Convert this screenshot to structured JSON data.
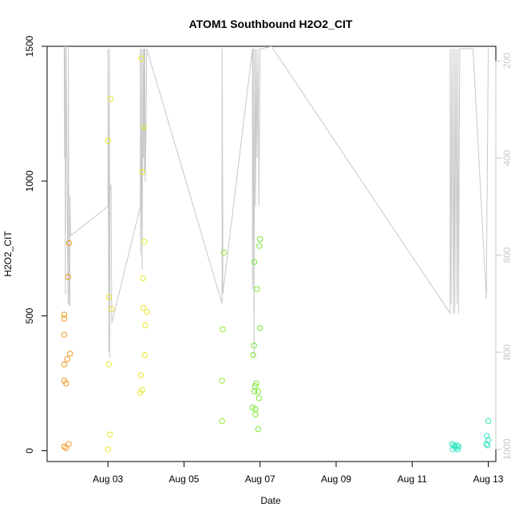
{
  "chart_data": {
    "type": "scatter",
    "title": "ATOM1 Southbound H2O2_CIT",
    "xlabel": "Date",
    "ylabel": "H2O2_CIT",
    "x_unit": "days in August",
    "xlim": [
      1.4,
      13.2
    ],
    "ylim": [
      -40,
      1500
    ],
    "x_ticks": [
      {
        "value": 3,
        "label": "Aug 03"
      },
      {
        "value": 5,
        "label": "Aug 05"
      },
      {
        "value": 7,
        "label": "Aug 07"
      },
      {
        "value": 9,
        "label": "Aug 09"
      },
      {
        "value": 11,
        "label": "Aug 11"
      },
      {
        "value": 13,
        "label": "Aug 13"
      }
    ],
    "y_ticks": [
      {
        "value": 0,
        "label": "0"
      },
      {
        "value": 500,
        "label": "500"
      },
      {
        "value": 1000,
        "label": "1000"
      },
      {
        "value": 1500,
        "label": "1500"
      }
    ],
    "right_axis": {
      "reversed": true,
      "ylim": [
        1025,
        170
      ],
      "color": "#c8c8c8",
      "ticks": [
        {
          "value": 200,
          "label": "200"
        },
        {
          "value": 400,
          "label": "400"
        },
        {
          "value": 600,
          "label": "600"
        },
        {
          "value": 800,
          "label": "800"
        },
        {
          "value": 1000,
          "label": "1000"
        }
      ]
    },
    "track": {
      "color": "#c8c8c8",
      "comment_free": true,
      "x": [
        1.85,
        1.86,
        1.87,
        1.88,
        1.9,
        1.95,
        1.96,
        1.97,
        1.98,
        2.0,
        2.0,
        2.02,
        3.0,
        3.0,
        3.02,
        3.04,
        3.05,
        3.05,
        3.08,
        3.1,
        3.85,
        3.85,
        3.86,
        3.88,
        3.88,
        3.9,
        3.92,
        3.93,
        3.95,
        3.96,
        3.97,
        3.98,
        4.0,
        4.02,
        6.0,
        6.0,
        6.02,
        6.02,
        6.8,
        6.8,
        6.82,
        6.84,
        6.86,
        6.88,
        6.9,
        6.92,
        6.95,
        6.97,
        7.0,
        7.05,
        7.3,
        12.0,
        12.0,
        12.02,
        12.05,
        12.08,
        12.1,
        12.12,
        12.15,
        12.18,
        12.2,
        12.22,
        12.25,
        12.6,
        12.95,
        13.0,
        13.0
      ],
      "y": [
        175,
        400,
        170,
        680,
        170,
        700,
        170,
        520,
        700,
        705,
        478,
        560,
        500,
        175,
        800,
        175,
        812,
        465,
        455,
        740,
        500,
        175,
        600,
        400,
        175,
        630,
        175,
        400,
        175,
        430,
        175,
        450,
        350,
        175,
        700,
        175,
        520,
        680,
        175,
        670,
        175,
        810,
        175,
        500,
        175,
        400,
        175,
        500,
        175,
        175,
        170,
        720,
        175,
        700,
        175,
        720,
        175,
        720,
        175,
        700,
        175,
        720,
        175,
        175,
        690,
        175,
        180
      ]
    },
    "color_scale": {
      "low": "#ff8c00",
      "mid": "#f0f000",
      "high": "#00e5a8"
    },
    "points": [
      [
        1.85,
        15,
        "#f09a22"
      ],
      [
        1.85,
        260,
        "#f09a22"
      ],
      [
        1.85,
        320,
        "#f09a22"
      ],
      [
        1.85,
        430,
        "#f09a22"
      ],
      [
        1.85,
        490,
        "#f09a22"
      ],
      [
        1.85,
        505,
        "#f09a22"
      ],
      [
        1.9,
        250,
        "#f09a22"
      ],
      [
        1.9,
        10,
        "#f09a22"
      ],
      [
        1.93,
        340,
        "#f09a22"
      ],
      [
        1.95,
        645,
        "#f09a22"
      ],
      [
        1.97,
        25,
        "#f09a22"
      ],
      [
        1.98,
        770,
        "#f09a22"
      ],
      [
        2.0,
        360,
        "#f09a22"
      ],
      [
        3.0,
        5,
        "#e8e830"
      ],
      [
        3.0,
        1150,
        "#e8e830"
      ],
      [
        3.02,
        320,
        "#e8e830"
      ],
      [
        3.03,
        570,
        "#e8e830"
      ],
      [
        3.05,
        60,
        "#e8e830"
      ],
      [
        3.07,
        1305,
        "#e8e830"
      ],
      [
        3.1,
        525,
        "#e8e830"
      ],
      [
        3.85,
        215,
        "#e8e830"
      ],
      [
        3.87,
        280,
        "#e8e830"
      ],
      [
        3.88,
        1455,
        "#e8e830"
      ],
      [
        3.9,
        225,
        "#e8e830"
      ],
      [
        3.9,
        1035,
        "#e8e830"
      ],
      [
        3.92,
        640,
        "#e8e830"
      ],
      [
        3.93,
        530,
        "#e8e830"
      ],
      [
        3.95,
        1200,
        "#e8e830"
      ],
      [
        3.96,
        775,
        "#e8e830"
      ],
      [
        3.97,
        355,
        "#e8e830"
      ],
      [
        3.98,
        465,
        "#e8e830"
      ],
      [
        4.02,
        515,
        "#e8e830"
      ],
      [
        6.0,
        110,
        "#9ae832"
      ],
      [
        6.0,
        260,
        "#9ae832"
      ],
      [
        6.02,
        450,
        "#9ae832"
      ],
      [
        6.05,
        735,
        "#9ae832"
      ],
      [
        6.8,
        160,
        "#7ae832"
      ],
      [
        6.82,
        355,
        "#7ae832"
      ],
      [
        6.84,
        390,
        "#7ae832"
      ],
      [
        6.85,
        700,
        "#7ae832"
      ],
      [
        6.85,
        220,
        "#7ae832"
      ],
      [
        6.87,
        240,
        "#7ae832"
      ],
      [
        6.88,
        155,
        "#7ae832"
      ],
      [
        6.88,
        135,
        "#7ae832"
      ],
      [
        6.9,
        250,
        "#7ae832"
      ],
      [
        6.92,
        600,
        "#7ae832"
      ],
      [
        6.95,
        220,
        "#7ae832"
      ],
      [
        6.95,
        80,
        "#7ae832"
      ],
      [
        6.97,
        195,
        "#7ae832"
      ],
      [
        6.98,
        760,
        "#7ae832"
      ],
      [
        7.0,
        785,
        "#7ae832"
      ],
      [
        7.0,
        455,
        "#7ae832"
      ],
      [
        12.05,
        25,
        "#32e8c0"
      ],
      [
        12.07,
        5,
        "#32e8c0"
      ],
      [
        12.1,
        20,
        "#32e8c0"
      ],
      [
        12.12,
        15,
        "#32e8c0"
      ],
      [
        12.15,
        10,
        "#32e8c0"
      ],
      [
        12.18,
        20,
        "#32e8c0"
      ],
      [
        12.2,
        5,
        "#32e8c0"
      ],
      [
        12.22,
        15,
        "#32e8c0"
      ],
      [
        12.95,
        25,
        "#32e8c0"
      ],
      [
        12.96,
        55,
        "#32e8c0"
      ],
      [
        12.98,
        20,
        "#32e8c0"
      ],
      [
        13.0,
        40,
        "#32e8c0"
      ],
      [
        13.0,
        110,
        "#32e8c0"
      ]
    ]
  }
}
